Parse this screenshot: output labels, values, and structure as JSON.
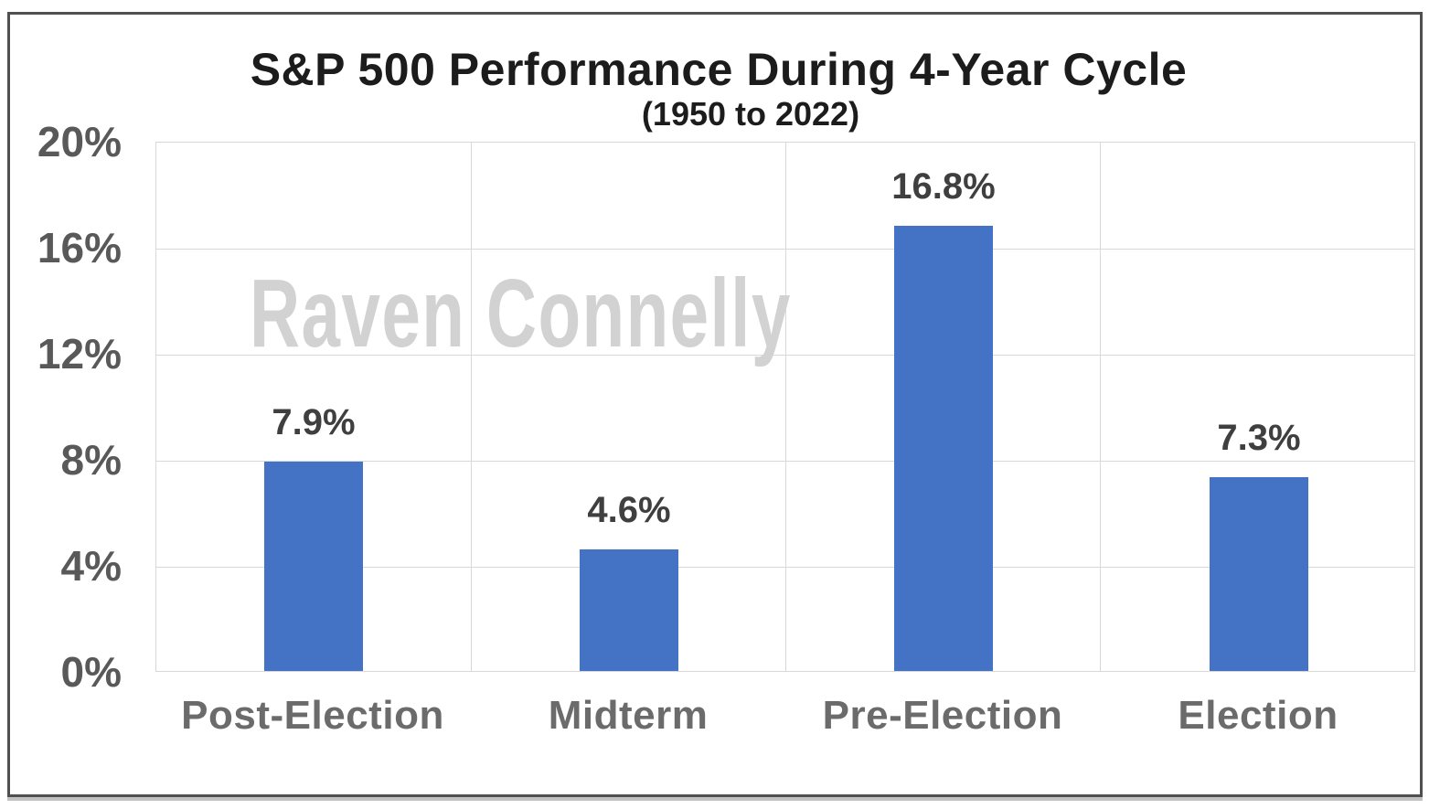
{
  "page": {
    "background_color": "#ffffff",
    "frame_border_color": "#4f4f4f"
  },
  "watermark": {
    "text": "Raven Connelly",
    "color": "#d2d2d2"
  },
  "chart_data": {
    "type": "bar",
    "title": "S&P 500 Performance During 4-Year Cycle",
    "subtitle": "(1950 to 2022)",
    "categories": [
      "Post-Election",
      "Midterm",
      "Pre-Election",
      "Election"
    ],
    "values": [
      7.9,
      4.6,
      16.8,
      7.3
    ],
    "data_labels": [
      "7.9%",
      "4.6%",
      "16.8%",
      "7.3%"
    ],
    "y_ticks": [
      "20%",
      "16%",
      "12%",
      "8%",
      "4%",
      "0%"
    ],
    "y_tick_values": [
      20,
      16,
      12,
      8,
      4,
      0
    ],
    "ylim": [
      0,
      20
    ],
    "xlabel": "",
    "ylabel": "",
    "grid": true,
    "gridline_color": "#d8d8d8",
    "bar_color": "#4472C4",
    "legend": "none",
    "title_color": "#1c1c1c",
    "axis_label_color": "#6b6b6b",
    "tick_label_color": "#595959",
    "value_label_color": "#3f3f3f"
  }
}
